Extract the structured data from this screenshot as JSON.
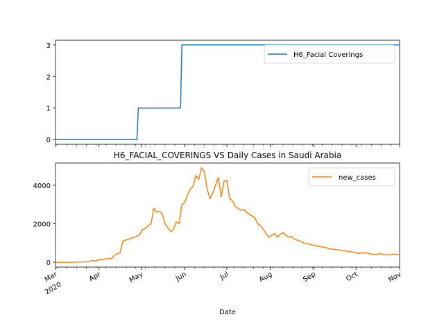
{
  "chart_data": [
    {
      "type": "line",
      "title": "",
      "xlabel": "",
      "ylabel": "",
      "ylim": [
        -0.15,
        3.15
      ],
      "yticks": [
        0,
        1,
        2,
        3
      ],
      "xlim": [
        "2020-03-01",
        "2020-11-01"
      ],
      "grid": false,
      "legend_position": "top-right",
      "series": [
        {
          "name": "H6_Facial Coverings",
          "color": "#1f77b4",
          "x": [
            "2020-03-01",
            "2020-04-28",
            "2020-04-29",
            "2020-05-29",
            "2020-05-30",
            "2020-11-01"
          ],
          "values": [
            0,
            0,
            1,
            1,
            3,
            3
          ]
        }
      ]
    },
    {
      "type": "line",
      "title": "H6_FACIAL_COVERINGS VS Daily Cases in Saudi Arabia",
      "xlabel": "Date",
      "ylabel": "",
      "ylim": [
        -250,
        5150
      ],
      "yticks": [
        0,
        2000,
        4000
      ],
      "xlim": [
        "2020-03-01",
        "2020-11-01"
      ],
      "grid": false,
      "legend_position": "top-right",
      "xtick_labels": [
        {
          "date": "2020-03-01",
          "label": "Mar",
          "label2": "2020"
        },
        {
          "date": "2020-04-01",
          "label": "Apr"
        },
        {
          "date": "2020-05-01",
          "label": "May"
        },
        {
          "date": "2020-06-01",
          "label": "Jun"
        },
        {
          "date": "2020-07-01",
          "label": "Jul"
        },
        {
          "date": "2020-08-01",
          "label": "Aug"
        },
        {
          "date": "2020-09-01",
          "label": "Sep"
        },
        {
          "date": "2020-10-01",
          "label": "Oct"
        },
        {
          "date": "2020-11-01",
          "label": "Nov"
        }
      ],
      "series": [
        {
          "name": "new_cases",
          "color": "#ff7f0e",
          "x": [
            "2020-03-01",
            "2020-03-10",
            "2020-03-15",
            "2020-03-20",
            "2020-03-25",
            "2020-03-27",
            "2020-03-29",
            "2020-03-31",
            "2020-04-02",
            "2020-04-04",
            "2020-04-06",
            "2020-04-08",
            "2020-04-10",
            "2020-04-12",
            "2020-04-14",
            "2020-04-16",
            "2020-04-18",
            "2020-04-20",
            "2020-04-22",
            "2020-04-24",
            "2020-04-26",
            "2020-04-28",
            "2020-04-30",
            "2020-05-02",
            "2020-05-04",
            "2020-05-06",
            "2020-05-08",
            "2020-05-10",
            "2020-05-12",
            "2020-05-14",
            "2020-05-16",
            "2020-05-18",
            "2020-05-20",
            "2020-05-22",
            "2020-05-24",
            "2020-05-26",
            "2020-05-28",
            "2020-05-30",
            "2020-06-01",
            "2020-06-03",
            "2020-06-05",
            "2020-06-07",
            "2020-06-09",
            "2020-06-11",
            "2020-06-13",
            "2020-06-15",
            "2020-06-17",
            "2020-06-19",
            "2020-06-21",
            "2020-06-23",
            "2020-06-25",
            "2020-06-27",
            "2020-06-29",
            "2020-07-01",
            "2020-07-03",
            "2020-07-05",
            "2020-07-07",
            "2020-07-09",
            "2020-07-11",
            "2020-07-13",
            "2020-07-15",
            "2020-07-17",
            "2020-07-19",
            "2020-07-21",
            "2020-07-23",
            "2020-07-25",
            "2020-07-27",
            "2020-07-29",
            "2020-07-31",
            "2020-08-02",
            "2020-08-04",
            "2020-08-06",
            "2020-08-08",
            "2020-08-10",
            "2020-08-12",
            "2020-08-14",
            "2020-08-16",
            "2020-08-18",
            "2020-08-20",
            "2020-08-22",
            "2020-08-25",
            "2020-08-28",
            "2020-08-31",
            "2020-09-03",
            "2020-09-06",
            "2020-09-09",
            "2020-09-12",
            "2020-09-15",
            "2020-09-18",
            "2020-09-21",
            "2020-09-24",
            "2020-09-27",
            "2020-09-30",
            "2020-10-03",
            "2020-10-06",
            "2020-10-09",
            "2020-10-12",
            "2020-10-15",
            "2020-10-18",
            "2020-10-21",
            "2020-10-24",
            "2020-10-27",
            "2020-10-30",
            "2020-11-01"
          ],
          "values": [
            0,
            0,
            5,
            15,
            40,
            100,
            60,
            110,
            150,
            130,
            180,
            190,
            200,
            350,
            450,
            500,
            1100,
            1150,
            1200,
            1250,
            1300,
            1350,
            1450,
            1700,
            1750,
            1900,
            2000,
            2800,
            2600,
            2650,
            2500,
            2000,
            1800,
            1600,
            1700,
            2100,
            2000,
            3000,
            3100,
            3500,
            3800,
            3950,
            4500,
            4300,
            4900,
            4700,
            3800,
            3300,
            3600,
            4000,
            4400,
            3400,
            4200,
            4250,
            3300,
            3200,
            2900,
            2800,
            2700,
            2750,
            2600,
            2500,
            2400,
            2300,
            2000,
            1900,
            1700,
            1500,
            1300,
            1400,
            1500,
            1300,
            1450,
            1550,
            1400,
            1300,
            1350,
            1200,
            1150,
            1100,
            1000,
            950,
            900,
            850,
            800,
            780,
            700,
            680,
            650,
            600,
            580,
            550,
            520,
            450,
            500,
            480,
            420,
            400,
            450,
            400,
            380,
            420,
            400,
            380
          ]
        }
      ]
    }
  ]
}
